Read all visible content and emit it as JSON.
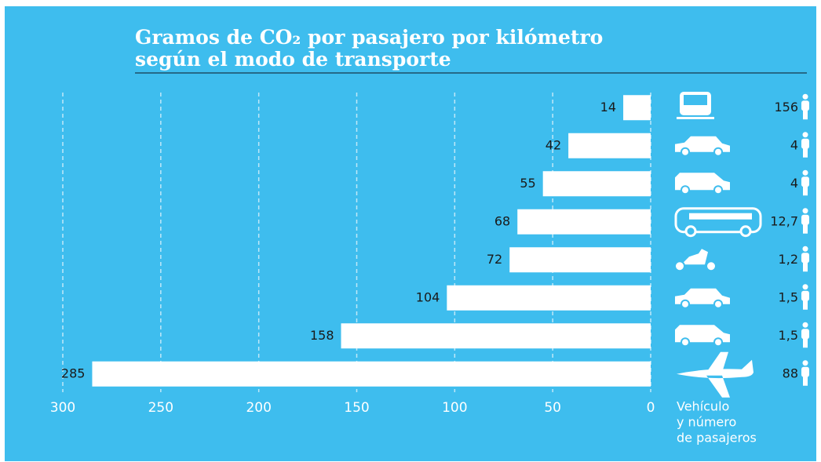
{
  "chart_data": {
    "type": "bar",
    "title": [
      "Gramos de CO₂ por pasajero por kilómetro",
      "según el modo de transporte"
    ],
    "values": [
      14,
      42,
      55,
      68,
      72,
      104,
      158,
      285
    ],
    "color": "#ffffff",
    "xlim": [
      300,
      0
    ],
    "xticks": [
      300,
      250,
      200,
      150,
      100,
      50,
      0
    ],
    "grid": true,
    "passengers": {
      "values": [
        156,
        4,
        4,
        12.7,
        1.2,
        1.5,
        1.5,
        88
      ],
      "value_labels": [
        "156",
        "4",
        "4",
        "12,7",
        "1,2",
        "1,5",
        "1,5",
        "88"
      ]
    },
    "xlabel": [
      "Vehículo",
      "y número",
      "de pasajeros"
    ]
  }
}
